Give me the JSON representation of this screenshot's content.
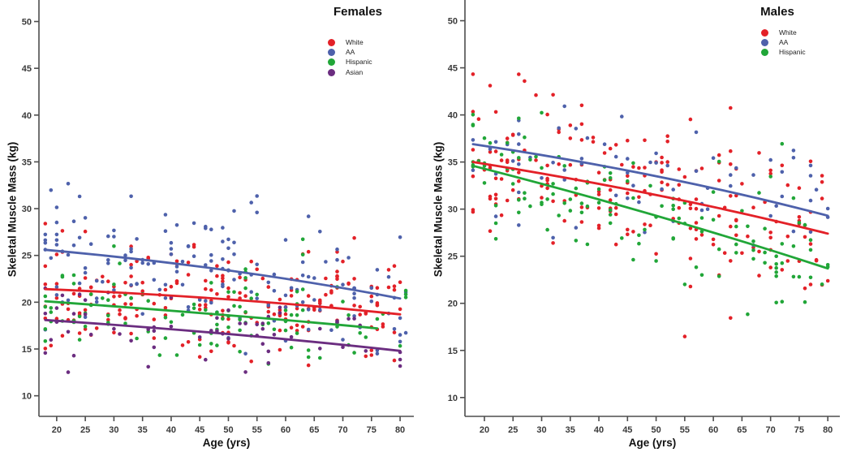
{
  "figure": {
    "background": "#ffffff",
    "axis_color": "#4d4d4d",
    "tick_label_color": "#3a3a3a"
  },
  "chart_data": [
    {
      "type": "scatter",
      "title": "Females",
      "xlabel": "Age (yrs)",
      "ylabel": "Skeletal Muscle Mass (kg)",
      "xlim": [
        16.9,
        82.4
      ],
      "ylim": [
        7.8,
        52.3
      ],
      "x_ticks": [
        20,
        25,
        30,
        35,
        40,
        45,
        50,
        55,
        60,
        65,
        70,
        75,
        80
      ],
      "y_ticks": [
        10,
        15,
        20,
        25,
        30,
        35,
        40,
        45,
        50
      ],
      "grid": false,
      "legend_position": "top-right-inside",
      "age_range": [
        18,
        81
      ],
      "age_skew": 1.2,
      "seed": 7,
      "series": [
        {
          "name": "White",
          "color": "#e32128",
          "n": 215,
          "trend": {
            "x": [
              18,
              50,
              80
            ],
            "y": [
              21.4,
              20.3,
              18.7
            ]
          },
          "scatter_sd": 3.0,
          "value_min": 13.0,
          "value_max": 33.5
        },
        {
          "name": "AA",
          "color": "#4e61ab",
          "n": 165,
          "trend": {
            "x": [
              18,
              50,
              80
            ],
            "y": [
              25.6,
              23.4,
              20.4
            ]
          },
          "scatter_sd": 3.4,
          "value_min": 14.5,
          "value_max": 36.3
        },
        {
          "name": "Hispanic",
          "color": "#21a638",
          "n": 110,
          "trend": {
            "x": [
              18,
              50,
              76
            ],
            "y": [
              20.1,
              18.6,
              17.2
            ]
          },
          "scatter_sd": 2.5,
          "value_min": 13.0,
          "value_max": 28.5
        },
        {
          "name": "Asian",
          "color": "#6b2d80",
          "n": 62,
          "trend": {
            "x": [
              18,
              50,
              80
            ],
            "y": [
              18.1,
              16.6,
              14.8
            ]
          },
          "scatter_sd": 2.1,
          "value_min": 10.2,
          "value_max": 24.0
        }
      ]
    },
    {
      "type": "scatter",
      "title": "Males",
      "xlabel": "Age (yrs)",
      "ylabel": "Skeletal Muscle Mass (kg)",
      "xlim": [
        16.6,
        82.1
      ],
      "ylim": [
        8.0,
        52.2
      ],
      "x_ticks": [
        20,
        25,
        30,
        35,
        40,
        45,
        50,
        55,
        60,
        65,
        70,
        75,
        80
      ],
      "y_ticks": [
        10,
        15,
        20,
        25,
        30,
        35,
        40,
        45,
        50
      ],
      "grid": false,
      "legend_position": "top-right-inside",
      "age_range": [
        18,
        80
      ],
      "age_skew": 1.1,
      "seed": 11,
      "series": [
        {
          "name": "White",
          "color": "#e32128",
          "n": 205,
          "trend": {
            "x": [
              18,
              50,
              80
            ],
            "y": [
              35.0,
              31.5,
              27.4
            ]
          },
          "scatter_sd": 3.8,
          "value_min": 15.5,
          "value_max": 46.8
        },
        {
          "name": "AA",
          "color": "#4e61ab",
          "n": 72,
          "trend": {
            "x": [
              18,
              50,
              80
            ],
            "y": [
              36.9,
              33.5,
              29.3
            ]
          },
          "scatter_sd": 3.4,
          "value_min": 21.0,
          "value_max": 49.5
        },
        {
          "name": "Hispanic",
          "color": "#21a638",
          "n": 130,
          "trend": {
            "x": [
              18,
              50,
              80
            ],
            "y": [
              34.6,
              29.3,
              23.7
            ]
          },
          "scatter_sd": 3.4,
          "value_min": 17.0,
          "value_max": 46.5
        }
      ]
    }
  ]
}
